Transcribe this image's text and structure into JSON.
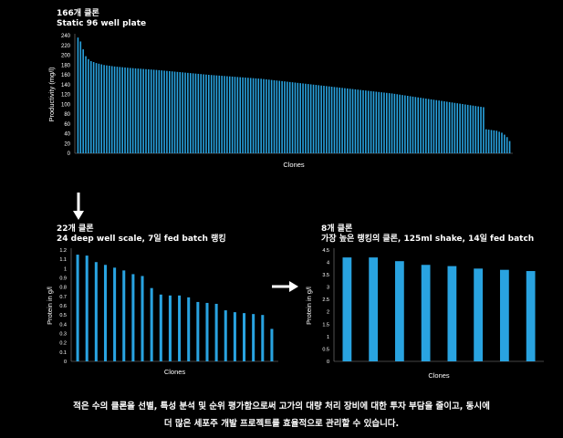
{
  "panels": {
    "top": {
      "title_line1": "166개 클론",
      "title_line2": "Static 96 well plate"
    },
    "left": {
      "title_line1": "22개 클론",
      "title_line2": "24 deep well scale, 7일 fed batch 랭킹"
    },
    "right": {
      "title_line1": "8개 클론",
      "title_line2": "가장 높은 랭킹의 클론, 125ml shake, 14일 fed batch"
    }
  },
  "caption": {
    "line1": "적은 수의 클론을 선별, 특성 분석 및 순위 평가함으로써 고가의 대량 처리 장비에 대한 투자 부담을 줄이고, 동시에",
    "line2": "더 많은 세포주 개발 프로젝트를 효율적으로 관리할 수 있습니다."
  },
  "colors": {
    "bar": "#29a3e0",
    "background": "#000000",
    "text": "#ffffff"
  },
  "chart_data": [
    {
      "type": "bar",
      "title": "166개 클론 / Static 96 well plate",
      "xlabel": "Clones",
      "ylabel": "Productivity (mg/l)",
      "ylim": [
        0,
        240
      ],
      "yticks": [
        0,
        20,
        40,
        60,
        80,
        100,
        120,
        140,
        160,
        180,
        200,
        220,
        240
      ],
      "n_bars": 166,
      "anchors": [
        [
          0,
          236
        ],
        [
          1,
          228
        ],
        [
          2,
          212
        ],
        [
          3,
          198
        ],
        [
          4,
          192
        ],
        [
          5,
          188
        ],
        [
          7,
          184
        ],
        [
          10,
          180
        ],
        [
          14,
          177
        ],
        [
          20,
          174
        ],
        [
          30,
          170
        ],
        [
          40,
          165
        ],
        [
          50,
          160
        ],
        [
          60,
          156
        ],
        [
          70,
          152
        ],
        [
          80,
          146
        ],
        [
          90,
          140
        ],
        [
          100,
          134
        ],
        [
          110,
          128
        ],
        [
          120,
          122
        ],
        [
          130,
          114
        ],
        [
          140,
          106
        ],
        [
          155,
          94
        ],
        [
          156,
          49
        ],
        [
          160,
          46
        ],
        [
          162,
          42
        ],
        [
          163,
          38
        ],
        [
          164,
          33
        ],
        [
          165,
          25
        ]
      ],
      "grid": false
    },
    {
      "type": "bar",
      "title": "22개 클론 / 24 deep well scale, 7일 fed batch 랭킹",
      "xlabel": "Clones",
      "ylabel": "Protein in g/l",
      "ylim": [
        0,
        1.2
      ],
      "yticks": [
        0,
        0.1,
        0.2,
        0.3,
        0.4,
        0.5,
        0.6,
        0.7,
        0.8,
        0.9,
        1,
        1.1,
        1.2
      ],
      "values": [
        1.15,
        1.14,
        1.07,
        1.04,
        1.01,
        0.98,
        0.94,
        0.92,
        0.79,
        0.72,
        0.71,
        0.71,
        0.69,
        0.64,
        0.63,
        0.62,
        0.55,
        0.53,
        0.52,
        0.51,
        0.5,
        0.35
      ],
      "grid": false
    },
    {
      "type": "bar",
      "title": "8개 클론 / 가장 높은 랭킹의 클론, 125ml shake, 14일 fed batch",
      "xlabel": "Clones",
      "ylabel": "Protein in g/l",
      "ylim": [
        0,
        4.5
      ],
      "yticks": [
        0,
        0.5,
        1,
        1.5,
        2,
        2.5,
        3,
        3.5,
        4,
        4.5
      ],
      "values": [
        4.2,
        4.2,
        4.05,
        3.9,
        3.85,
        3.75,
        3.7,
        3.65
      ],
      "grid": false
    }
  ]
}
